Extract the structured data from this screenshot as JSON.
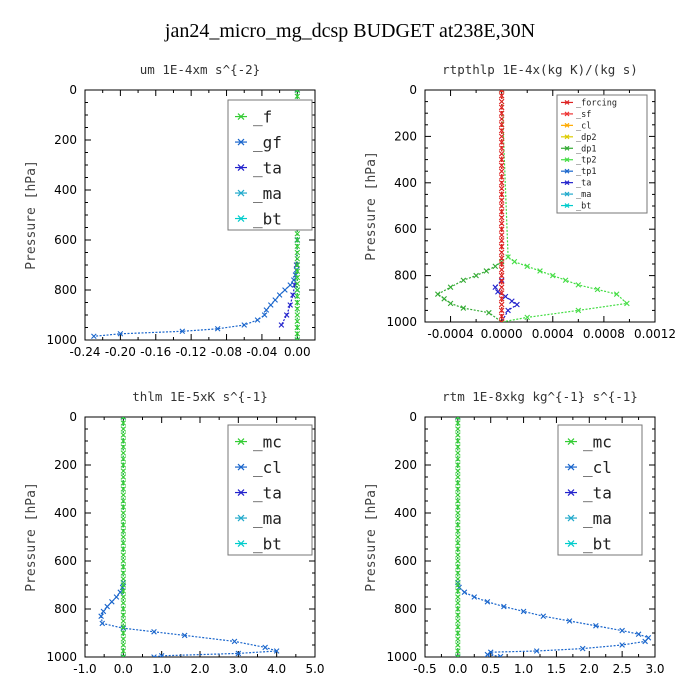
{
  "figure_title": "jan24_micro_mg_dcsp  BUDGET at238E,30N",
  "chart_data": [
    {
      "type": "line",
      "title": "um   1E-4xm s^{-2}",
      "ylabel": "Pressure [hPa]",
      "xlim": [
        -0.24,
        0.02
      ],
      "ylim": [
        1000,
        0
      ],
      "xticks": [
        "-0.24",
        "-0.20",
        "-0.16",
        "-0.12",
        "-0.08",
        "-0.04",
        "0.00"
      ],
      "xtick_values": [
        -0.24,
        -0.2,
        -0.16,
        -0.12,
        -0.08,
        -0.04,
        0.0
      ],
      "yticks": [
        "0",
        "200",
        "400",
        "600",
        "800",
        "1000"
      ],
      "legend_size": "large",
      "series": [
        {
          "name": "_f",
          "color": "#33cc33",
          "marker": "x",
          "x": [
            0,
            0,
            0,
            0,
            0,
            0,
            0,
            0,
            0,
            0,
            0,
            0,
            0,
            0,
            0,
            0,
            0,
            0,
            0,
            0,
            0,
            0,
            0,
            0,
            0,
            0,
            0,
            0,
            0,
            0,
            0,
            0,
            0,
            0,
            0,
            0,
            0,
            0,
            0,
            0,
            0
          ],
          "y": [
            0,
            25,
            50,
            75,
            100,
            125,
            150,
            175,
            200,
            225,
            250,
            275,
            300,
            325,
            350,
            375,
            400,
            425,
            450,
            475,
            500,
            525,
            550,
            575,
            600,
            625,
            650,
            675,
            700,
            725,
            750,
            775,
            800,
            825,
            850,
            875,
            900,
            925,
            950,
            975,
            1000
          ]
        },
        {
          "name": "_gf",
          "color": "#1a66cc",
          "marker": "x",
          "x": [
            0,
            0,
            0,
            0,
            0,
            -0.001,
            -0.002,
            -0.004,
            -0.008,
            -0.014,
            -0.02,
            -0.025,
            -0.03,
            -0.035,
            -0.037,
            -0.045,
            -0.06,
            -0.09,
            -0.13,
            -0.2,
            -0.23
          ],
          "y": [
            0,
            200,
            400,
            600,
            700,
            720,
            740,
            760,
            780,
            800,
            820,
            840,
            860,
            880,
            900,
            920,
            940,
            955,
            965,
            975,
            985
          ]
        },
        {
          "name": "_ta",
          "color": "#2222cc",
          "marker": "x",
          "x": [
            0,
            0,
            0,
            0,
            -0.001,
            -0.002,
            -0.003,
            -0.005,
            -0.008,
            -0.012,
            -0.018
          ],
          "y": [
            0,
            200,
            400,
            600,
            700,
            740,
            780,
            820,
            860,
            900,
            940
          ]
        },
        {
          "name": "_ma",
          "color": "#22aacc",
          "marker": "x",
          "x": [
            0,
            0,
            0,
            0,
            0,
            0
          ],
          "y": [
            0,
            200,
            400,
            600,
            800,
            1000
          ]
        },
        {
          "name": "_bt",
          "color": "#00cccc",
          "marker": "x",
          "x": [
            0,
            0,
            0,
            0,
            0,
            0
          ],
          "y": [
            0,
            200,
            400,
            600,
            800,
            1000
          ]
        }
      ]
    },
    {
      "type": "line",
      "title": "rtpthlp   1E-4x(kg K)/(kg s)",
      "ylabel": "Pressure [hPa]",
      "xlim": [
        -0.0006,
        0.0012
      ],
      "ylim": [
        1000,
        0
      ],
      "xticks": [
        "-0.0004",
        "0.0000",
        "0.0004",
        "0.0008",
        "0.0012"
      ],
      "xtick_values": [
        -0.0004,
        0.0,
        0.0004,
        0.0008,
        0.0012
      ],
      "yticks": [
        "0",
        "200",
        "400",
        "600",
        "800",
        "1000"
      ],
      "legend_size": "small",
      "series": [
        {
          "name": "_forcing",
          "color": "#dd2222",
          "marker": "x",
          "x": [
            0,
            0,
            0,
            0,
            0,
            0,
            0,
            0,
            0,
            0,
            0,
            0,
            0,
            0,
            0,
            0,
            0,
            0,
            0,
            0,
            0,
            0,
            0,
            0,
            0,
            0,
            0,
            0,
            0,
            0,
            0,
            0,
            0,
            0,
            0,
            0,
            0,
            0,
            0,
            0,
            0
          ],
          "y": [
            0,
            25,
            50,
            75,
            100,
            125,
            150,
            175,
            200,
            225,
            250,
            275,
            300,
            325,
            350,
            375,
            400,
            425,
            450,
            475,
            500,
            525,
            550,
            575,
            600,
            625,
            650,
            675,
            700,
            725,
            750,
            775,
            800,
            825,
            850,
            875,
            900,
            925,
            950,
            975,
            1000
          ]
        },
        {
          "name": "_sf",
          "color": "#ee3333",
          "marker": "x",
          "x": [
            0,
            0
          ],
          "y": [
            0,
            1000
          ]
        },
        {
          "name": "_cl",
          "color": "#ffaa00",
          "marker": "x",
          "x": [
            0,
            0
          ],
          "y": [
            0,
            1000
          ]
        },
        {
          "name": "_dp2",
          "color": "#ddcc00",
          "marker": "x",
          "x": [
            0,
            0
          ],
          "y": [
            0,
            1000
          ]
        },
        {
          "name": "_dp1",
          "color": "#33aa33",
          "marker": "x",
          "x": [
            0,
            0,
            -5e-05,
            -0.00012,
            -0.0002,
            -0.0003,
            -0.0004,
            -0.0005,
            -0.00045,
            -0.0004,
            -0.0003,
            -0.0001,
            0
          ],
          "y": [
            0,
            740,
            760,
            780,
            800,
            820,
            850,
            880,
            900,
            920,
            940,
            960,
            1000
          ]
        },
        {
          "name": "_tp2",
          "color": "#44dd44",
          "marker": "x",
          "x": [
            0,
            5e-05,
            0.0001,
            0.0002,
            0.0003,
            0.0004,
            0.0005,
            0.0006,
            0.00075,
            0.0009,
            0.00098,
            0.0006,
            0.0002,
            0
          ],
          "y": [
            0,
            720,
            740,
            760,
            780,
            800,
            820,
            840,
            860,
            880,
            920,
            950,
            980,
            1000
          ]
        },
        {
          "name": "_tp1",
          "color": "#1a66cc",
          "marker": "x",
          "x": [
            0,
            0
          ],
          "y": [
            0,
            1000
          ]
        },
        {
          "name": "_ta",
          "color": "#2222cc",
          "marker": "x",
          "x": [
            0,
            0,
            -5e-05,
            -3e-05,
            3e-05,
            8e-05,
            0.00012,
            5e-05,
            0
          ],
          "y": [
            0,
            820,
            850,
            870,
            890,
            910,
            925,
            950,
            1000
          ]
        },
        {
          "name": "_ma",
          "color": "#22aacc",
          "marker": "x",
          "x": [
            0,
            0
          ],
          "y": [
            0,
            1000
          ]
        },
        {
          "name": "_bt",
          "color": "#00cccc",
          "marker": "x",
          "x": [
            0,
            0
          ],
          "y": [
            0,
            1000
          ]
        }
      ]
    },
    {
      "type": "line",
      "title": "thlm   1E-5xK s^{-1}",
      "ylabel": "Pressure [hPa]",
      "xlim": [
        -1.0,
        5.0
      ],
      "ylim": [
        1000,
        0
      ],
      "xticks": [
        "-1.0",
        "0.0",
        "1.0",
        "2.0",
        "3.0",
        "4.0",
        "5.0"
      ],
      "xtick_values": [
        -1.0,
        0.0,
        1.0,
        2.0,
        3.0,
        4.0,
        5.0
      ],
      "yticks": [
        "0",
        "200",
        "400",
        "600",
        "800",
        "1000"
      ],
      "legend_size": "large",
      "series": [
        {
          "name": "_mc",
          "color": "#33cc33",
          "marker": "x",
          "x": [
            0,
            0,
            0,
            0,
            0,
            0,
            0,
            0,
            0,
            0,
            0,
            0,
            0,
            0,
            0,
            0,
            0,
            0,
            0,
            0,
            0,
            0,
            0,
            0,
            0,
            0,
            0,
            0,
            0,
            0,
            0,
            0,
            0,
            0,
            0,
            0,
            0,
            0,
            0,
            0,
            0
          ],
          "y": [
            0,
            25,
            50,
            75,
            100,
            125,
            150,
            175,
            200,
            225,
            250,
            275,
            300,
            325,
            350,
            375,
            400,
            425,
            450,
            475,
            500,
            525,
            550,
            575,
            600,
            625,
            650,
            675,
            700,
            725,
            750,
            775,
            800,
            825,
            850,
            875,
            900,
            925,
            950,
            975,
            1000
          ]
        },
        {
          "name": "_cl",
          "color": "#1a66cc",
          "marker": "x",
          "x": [
            0,
            0,
            -0.02,
            -0.08,
            -0.18,
            -0.3,
            -0.42,
            -0.52,
            -0.58,
            -0.55,
            0.0,
            0.8,
            1.6,
            2.9,
            3.7,
            4.0,
            3.0,
            1.0,
            0.8
          ],
          "y": [
            0,
            690,
            710,
            730,
            750,
            770,
            790,
            810,
            830,
            860,
            880,
            895,
            910,
            935,
            960,
            975,
            985,
            995,
            1000
          ]
        },
        {
          "name": "_ta",
          "color": "#2222cc",
          "marker": "x",
          "x": [
            0,
            0
          ],
          "y": [
            0,
            1000
          ]
        },
        {
          "name": "_ma",
          "color": "#22aacc",
          "marker": "x",
          "x": [
            0,
            0
          ],
          "y": [
            0,
            1000
          ]
        },
        {
          "name": "_bt",
          "color": "#00cccc",
          "marker": "x",
          "x": [
            0,
            0
          ],
          "y": [
            0,
            1000
          ]
        }
      ]
    },
    {
      "type": "line",
      "title": "rtm   1E-8xkg kg^{-1} s^{-1}",
      "ylabel": "Pressure [hPa]",
      "xlim": [
        -0.5,
        3.0
      ],
      "ylim": [
        1000,
        0
      ],
      "xticks": [
        "-0.5",
        "0.0",
        "0.5",
        "1.0",
        "1.5",
        "2.0",
        "2.5",
        "3.0"
      ],
      "xtick_values": [
        -0.5,
        0.0,
        0.5,
        1.0,
        1.5,
        2.0,
        2.5,
        3.0
      ],
      "yticks": [
        "0",
        "200",
        "400",
        "600",
        "800",
        "1000"
      ],
      "legend_size": "large",
      "series": [
        {
          "name": "_mc",
          "color": "#33cc33",
          "marker": "x",
          "x": [
            0,
            0,
            0,
            0,
            0,
            0,
            0,
            0,
            0,
            0,
            0,
            0,
            0,
            0,
            0,
            0,
            0,
            0,
            0,
            0,
            0,
            0,
            0,
            0,
            0,
            0,
            0,
            0,
            0,
            0,
            0,
            0,
            0,
            0,
            0,
            0,
            0,
            0,
            0,
            0,
            0
          ],
          "y": [
            0,
            25,
            50,
            75,
            100,
            125,
            150,
            175,
            200,
            225,
            250,
            275,
            300,
            325,
            350,
            375,
            400,
            425,
            450,
            475,
            500,
            525,
            550,
            575,
            600,
            625,
            650,
            675,
            700,
            725,
            750,
            775,
            800,
            825,
            850,
            875,
            900,
            925,
            950,
            975,
            1000
          ]
        },
        {
          "name": "_cl",
          "color": "#1a66cc",
          "marker": "x",
          "x": [
            0,
            0,
            0.02,
            0.1,
            0.25,
            0.45,
            0.7,
            1.0,
            1.3,
            1.7,
            2.1,
            2.5,
            2.75,
            2.9,
            2.85,
            2.5,
            1.9,
            1.2,
            0.5,
            0.45,
            0.65
          ],
          "y": [
            0,
            690,
            710,
            730,
            750,
            770,
            790,
            810,
            830,
            850,
            870,
            890,
            905,
            920,
            935,
            950,
            965,
            975,
            980,
            990,
            998
          ]
        },
        {
          "name": "_ta",
          "color": "#2222cc",
          "marker": "x",
          "x": [
            0,
            0
          ],
          "y": [
            0,
            1000
          ]
        },
        {
          "name": "_ma",
          "color": "#22aacc",
          "marker": "x",
          "x": [
            0,
            0
          ],
          "y": [
            0,
            1000
          ]
        },
        {
          "name": "_bt",
          "color": "#00cccc",
          "marker": "x",
          "x": [
            0,
            0
          ],
          "y": [
            0,
            1000
          ]
        }
      ]
    }
  ]
}
